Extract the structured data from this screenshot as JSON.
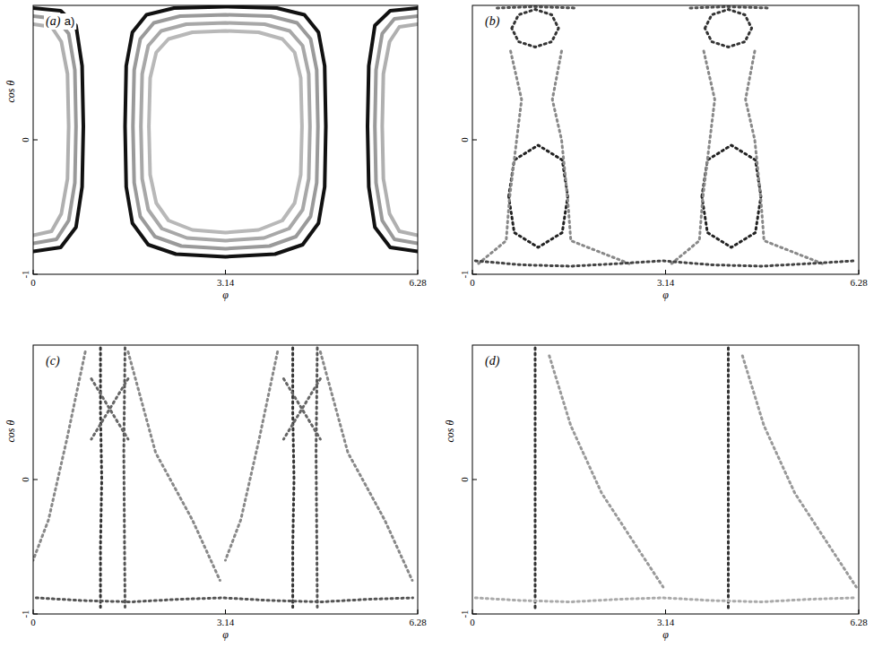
{
  "chart_data": [
    {
      "type": "line",
      "title": "(a)",
      "annotation": "a)",
      "xlabel": "φ",
      "ylabel": "cos θ",
      "xlim": [
        0,
        6.28
      ],
      "ylim": [
        -1,
        1
      ],
      "xticks": [
        0,
        3.14,
        6.28
      ],
      "yticks": [
        -1,
        0
      ],
      "series": [
        {
          "color": "#111111",
          "line_style": "solid",
          "x": [
            1.5,
            1.52,
            1.62,
            1.85,
            2.3,
            3.14,
            3.98,
            4.43,
            4.66,
            4.76,
            4.78,
            4.76,
            4.66,
            4.4,
            3.95,
            3.14,
            2.33,
            1.88,
            1.62,
            1.52,
            1.5
          ],
          "values": [
            0.1,
            0.55,
            0.8,
            0.93,
            0.98,
            0.99,
            0.98,
            0.93,
            0.8,
            0.55,
            0.1,
            -0.35,
            -0.62,
            -0.78,
            -0.85,
            -0.87,
            -0.85,
            -0.78,
            -0.62,
            -0.35,
            0.1
          ]
        },
        {
          "color": "#9a9a9a",
          "line_style": "solid",
          "x": [
            1.63,
            1.65,
            1.75,
            1.97,
            2.4,
            3.14,
            3.88,
            4.31,
            4.53,
            4.63,
            4.65,
            4.63,
            4.53,
            4.29,
            3.86,
            3.14,
            2.42,
            1.99,
            1.75,
            1.65,
            1.63
          ],
          "values": [
            0.1,
            0.52,
            0.75,
            0.87,
            0.92,
            0.93,
            0.92,
            0.87,
            0.75,
            0.52,
            0.1,
            -0.32,
            -0.57,
            -0.72,
            -0.79,
            -0.81,
            -0.79,
            -0.72,
            -0.57,
            -0.32,
            0.1
          ]
        },
        {
          "color": "#a8a8a8",
          "line_style": "solid",
          "x": [
            1.76,
            1.78,
            1.88,
            2.09,
            2.5,
            3.14,
            3.78,
            4.19,
            4.4,
            4.5,
            4.52,
            4.5,
            4.4,
            4.18,
            3.77,
            3.14,
            2.51,
            2.1,
            1.88,
            1.78,
            1.76
          ],
          "values": [
            0.1,
            0.49,
            0.7,
            0.81,
            0.86,
            0.87,
            0.86,
            0.81,
            0.7,
            0.49,
            0.1,
            -0.29,
            -0.52,
            -0.66,
            -0.73,
            -0.75,
            -0.73,
            -0.66,
            -0.52,
            -0.29,
            0.1
          ]
        },
        {
          "color": "#b8b8b8",
          "line_style": "solid",
          "x": [
            1.89,
            1.91,
            2.01,
            2.21,
            2.6,
            3.14,
            3.68,
            4.07,
            4.27,
            4.37,
            4.39,
            4.37,
            4.27,
            4.07,
            3.68,
            3.14,
            2.6,
            2.21,
            2.01,
            1.91,
            1.89
          ],
          "values": [
            0.1,
            0.46,
            0.65,
            0.75,
            0.8,
            0.81,
            0.8,
            0.75,
            0.65,
            0.46,
            0.1,
            -0.26,
            -0.47,
            -0.6,
            -0.67,
            -0.69,
            -0.67,
            -0.6,
            -0.47,
            -0.26,
            0.1
          ]
        },
        {
          "color": "#111111",
          "line_style": "solid",
          "x": [
            0,
            0.45,
            0.7,
            0.8,
            0.82,
            0.8,
            0.7,
            0.45,
            0
          ],
          "values": [
            0.98,
            0.96,
            0.85,
            0.55,
            0.1,
            -0.35,
            -0.65,
            -0.8,
            -0.83
          ]
        },
        {
          "color": "#9a9a9a",
          "line_style": "solid",
          "x": [
            0,
            0.38,
            0.58,
            0.68,
            0.7,
            0.68,
            0.58,
            0.38,
            0
          ],
          "values": [
            0.92,
            0.9,
            0.79,
            0.52,
            0.1,
            -0.32,
            -0.6,
            -0.74,
            -0.77
          ]
        },
        {
          "color": "#b0b0b0",
          "line_style": "solid",
          "x": [
            0,
            0.3,
            0.46,
            0.56,
            0.58,
            0.56,
            0.46,
            0.3,
            0
          ],
          "values": [
            0.86,
            0.84,
            0.73,
            0.49,
            0.1,
            -0.29,
            -0.55,
            -0.68,
            -0.71
          ]
        },
        {
          "color": "#111111",
          "line_style": "solid",
          "x": [
            6.28,
            5.83,
            5.58,
            5.48,
            5.46,
            5.48,
            5.58,
            5.83,
            6.28
          ],
          "values": [
            0.98,
            0.96,
            0.85,
            0.55,
            0.1,
            -0.35,
            -0.65,
            -0.8,
            -0.83
          ]
        },
        {
          "color": "#9a9a9a",
          "line_style": "solid",
          "x": [
            6.28,
            5.9,
            5.7,
            5.6,
            5.58,
            5.6,
            5.7,
            5.9,
            6.28
          ],
          "values": [
            0.92,
            0.9,
            0.79,
            0.52,
            0.1,
            -0.32,
            -0.6,
            -0.74,
            -0.77
          ]
        },
        {
          "color": "#b0b0b0",
          "line_style": "solid",
          "x": [
            6.28,
            5.98,
            5.82,
            5.72,
            5.7,
            5.72,
            5.82,
            5.98,
            6.28
          ],
          "values": [
            0.86,
            0.84,
            0.73,
            0.49,
            0.1,
            -0.29,
            -0.55,
            -0.68,
            -0.71
          ]
        }
      ]
    },
    {
      "type": "line",
      "title": "(b)",
      "xlabel": "φ",
      "xlim": [
        0,
        6.28
      ],
      "ylim": [
        -1,
        1
      ],
      "xticks": [
        0,
        3.14,
        6.28
      ],
      "yticks": [
        -1,
        0
      ],
      "series": [
        {
          "color": "#333333",
          "line_style": "dotted",
          "x": [
            0.64,
            0.75,
            1.02,
            1.29,
            1.4,
            1.29,
            1.02,
            0.75,
            0.64
          ],
          "values": [
            0.83,
            0.93,
            0.97,
            0.93,
            0.83,
            0.73,
            0.69,
            0.73,
            0.83
          ]
        },
        {
          "color": "#333333",
          "line_style": "dotted",
          "x": [
            3.78,
            3.89,
            4.16,
            4.43,
            4.54,
            4.43,
            4.16,
            3.89,
            3.78
          ],
          "values": [
            0.83,
            0.93,
            0.97,
            0.93,
            0.83,
            0.73,
            0.69,
            0.73,
            0.83
          ]
        },
        {
          "color": "#222222",
          "line_style": "dotted",
          "x": [
            0.59,
            0.68,
            1.07,
            1.46,
            1.55,
            1.46,
            1.07,
            0.68,
            0.59
          ],
          "values": [
            -0.42,
            -0.15,
            -0.04,
            -0.15,
            -0.42,
            -0.69,
            -0.8,
            -0.69,
            -0.42
          ]
        },
        {
          "color": "#222222",
          "line_style": "dotted",
          "x": [
            3.73,
            3.82,
            4.21,
            4.6,
            4.69,
            4.6,
            4.21,
            3.82,
            3.73
          ],
          "values": [
            -0.42,
            -0.15,
            -0.04,
            -0.15,
            -0.42,
            -0.69,
            -0.8,
            -0.69,
            -0.42
          ]
        },
        {
          "color": "#888888",
          "line_style": "dotted",
          "x": [
            0.62,
            0.8,
            0.72,
            0.6,
            0.55,
            0.1
          ],
          "values": [
            0.66,
            0.3,
            0.0,
            -0.45,
            -0.75,
            -0.92
          ]
        },
        {
          "color": "#888888",
          "line_style": "dotted",
          "x": [
            1.45,
            1.3,
            1.45,
            1.55,
            1.6,
            2.6
          ],
          "values": [
            0.66,
            0.3,
            0.0,
            -0.45,
            -0.75,
            -0.93
          ]
        },
        {
          "color": "#888888",
          "line_style": "dotted",
          "x": [
            3.76,
            3.94,
            3.86,
            3.74,
            3.69,
            3.24
          ],
          "values": [
            0.66,
            0.3,
            0.0,
            -0.45,
            -0.75,
            -0.92
          ]
        },
        {
          "color": "#888888",
          "line_style": "dotted",
          "x": [
            4.59,
            4.44,
            4.59,
            4.69,
            4.74,
            5.74
          ],
          "values": [
            0.66,
            0.3,
            0.0,
            -0.45,
            -0.75,
            -0.93
          ]
        },
        {
          "color": "#444444",
          "line_style": "dotted",
          "x": [
            0.05,
            0.8,
            1.6,
            2.4,
            3.1,
            3.9,
            4.7,
            5.5,
            6.2
          ],
          "values": [
            -0.9,
            -0.93,
            -0.94,
            -0.92,
            -0.9,
            -0.93,
            -0.94,
            -0.92,
            -0.9
          ]
        },
        {
          "color": "#555555",
          "line_style": "dotted",
          "x": [
            0.4,
            1.0,
            1.7
          ],
          "values": [
            0.98,
            0.99,
            0.98
          ]
        },
        {
          "color": "#555555",
          "line_style": "dotted",
          "x": [
            3.54,
            4.14,
            4.84
          ],
          "values": [
            0.98,
            0.99,
            0.98
          ]
        }
      ]
    },
    {
      "type": "line",
      "title": "(c)",
      "xlabel": "φ",
      "ylabel": "cos θ",
      "xlim": [
        0,
        6.28
      ],
      "ylim": [
        -1,
        1
      ],
      "xticks": [
        0,
        3.14,
        6.28
      ],
      "yticks": [
        -1,
        0
      ],
      "series": [
        {
          "color": "#333333",
          "line_style": "dotted",
          "x": [
            1.1,
            1.1,
            1.12,
            1.1,
            1.1
          ],
          "values": [
            0.98,
            0.5,
            0.0,
            -0.5,
            -0.95
          ]
        },
        {
          "color": "#555555",
          "line_style": "dotted",
          "x": [
            1.5,
            1.48,
            1.5
          ],
          "values": [
            0.98,
            0.2,
            -0.95
          ]
        },
        {
          "color": "#333333",
          "line_style": "dotted",
          "x": [
            4.24,
            4.24,
            4.26,
            4.24,
            4.24
          ],
          "values": [
            0.98,
            0.5,
            0.0,
            -0.5,
            -0.95
          ]
        },
        {
          "color": "#555555",
          "line_style": "dotted",
          "x": [
            4.64,
            4.62,
            4.64
          ],
          "values": [
            0.98,
            0.2,
            -0.95
          ]
        },
        {
          "color": "#888888",
          "line_style": "dotted",
          "x": [
            1.55,
            2.0,
            2.6,
            3.05
          ],
          "values": [
            0.95,
            0.2,
            -0.3,
            -0.75
          ]
        },
        {
          "color": "#888888",
          "line_style": "dotted",
          "x": [
            4.69,
            5.14,
            5.74,
            6.19
          ],
          "values": [
            0.95,
            0.2,
            -0.3,
            -0.75
          ]
        },
        {
          "color": "#888888",
          "line_style": "dotted",
          "x": [
            0.85,
            0.55,
            0.25,
            0.0
          ],
          "values": [
            0.95,
            0.3,
            -0.3,
            -0.6
          ]
        },
        {
          "color": "#888888",
          "line_style": "dotted",
          "x": [
            3.99,
            3.69,
            3.39,
            3.14
          ],
          "values": [
            0.95,
            0.3,
            -0.3,
            -0.6
          ]
        },
        {
          "color": "#666666",
          "line_style": "dotted",
          "x": [
            0.95,
            1.55
          ],
          "values": [
            0.75,
            0.3
          ]
        },
        {
          "color": "#666666",
          "line_style": "dotted",
          "x": [
            1.55,
            0.95
          ],
          "values": [
            0.75,
            0.3
          ]
        },
        {
          "color": "#666666",
          "line_style": "dotted",
          "x": [
            4.09,
            4.69
          ],
          "values": [
            0.75,
            0.3
          ]
        },
        {
          "color": "#666666",
          "line_style": "dotted",
          "x": [
            4.69,
            4.09
          ],
          "values": [
            0.75,
            0.3
          ]
        },
        {
          "color": "#555555",
          "line_style": "dotted",
          "x": [
            0.05,
            0.8,
            1.6,
            2.4,
            3.1,
            3.9,
            4.7,
            5.5,
            6.2
          ],
          "values": [
            -0.88,
            -0.9,
            -0.91,
            -0.89,
            -0.88,
            -0.9,
            -0.91,
            -0.89,
            -0.88
          ]
        }
      ]
    },
    {
      "type": "line",
      "title": "(d)",
      "xlabel": "φ",
      "ylabel": "cos θ",
      "xlim": [
        0,
        6.28
      ],
      "ylim": [
        -1,
        1
      ],
      "xticks": [
        0,
        3.14,
        6.28
      ],
      "yticks": [
        -1,
        0
      ],
      "series": [
        {
          "color": "#333333",
          "line_style": "dotted",
          "x": [
            1.02,
            1.02,
            1.02,
            1.02,
            1.02
          ],
          "values": [
            0.98,
            0.5,
            0.0,
            -0.5,
            -0.98
          ]
        },
        {
          "color": "#333333",
          "line_style": "dotted",
          "x": [
            4.16,
            4.16,
            4.16,
            4.16,
            4.16
          ],
          "values": [
            0.98,
            0.5,
            0.0,
            -0.5,
            -0.98
          ]
        },
        {
          "color": "#999999",
          "line_style": "dotted",
          "x": [
            1.25,
            1.6,
            2.1,
            2.6,
            3.1
          ],
          "values": [
            0.92,
            0.4,
            -0.1,
            -0.45,
            -0.8
          ]
        },
        {
          "color": "#999999",
          "line_style": "dotted",
          "x": [
            4.39,
            4.74,
            5.24,
            5.74,
            6.24
          ],
          "values": [
            0.92,
            0.4,
            -0.1,
            -0.45,
            -0.8
          ]
        },
        {
          "color": "#aaaaaa",
          "line_style": "dotted",
          "x": [
            0.05,
            0.8,
            1.6,
            2.4,
            3.1,
            3.9,
            4.7,
            5.5,
            6.2
          ],
          "values": [
            -0.88,
            -0.9,
            -0.91,
            -0.89,
            -0.88,
            -0.9,
            -0.91,
            -0.89,
            -0.88
          ]
        }
      ]
    }
  ]
}
